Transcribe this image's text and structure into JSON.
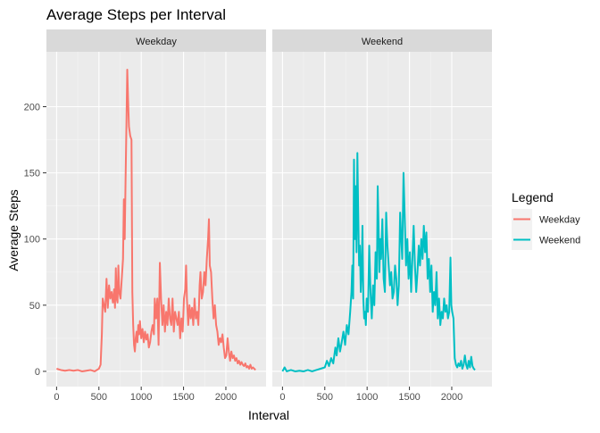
{
  "chart_data": {
    "type": "line",
    "title": "Average Steps per Interval",
    "xlabel": "Interval",
    "ylabel": "Average Steps",
    "xlim": [
      -120,
      2475
    ],
    "ylim": [
      -11.5,
      241.5
    ],
    "x_ticks": [
      0,
      500,
      1000,
      1500,
      2000
    ],
    "y_ticks": [
      0,
      50,
      100,
      150,
      200
    ],
    "grid": true,
    "legend": {
      "title": "Legend",
      "position": "right"
    },
    "facets": [
      "Weekday",
      "Weekend"
    ],
    "series": [
      {
        "name": "Weekday",
        "facet": "Weekday",
        "color": "#F8766D",
        "points": [
          [
            0,
            2
          ],
          [
            50,
            1
          ],
          [
            100,
            0.5
          ],
          [
            150,
            1
          ],
          [
            200,
            0.5
          ],
          [
            250,
            1
          ],
          [
            300,
            0
          ],
          [
            350,
            0.5
          ],
          [
            400,
            1
          ],
          [
            450,
            0
          ],
          [
            500,
            2
          ],
          [
            520,
            5
          ],
          [
            535,
            28
          ],
          [
            545,
            55
          ],
          [
            560,
            50
          ],
          [
            575,
            45
          ],
          [
            590,
            70
          ],
          [
            605,
            48
          ],
          [
            620,
            65
          ],
          [
            635,
            55
          ],
          [
            650,
            60
          ],
          [
            665,
            52
          ],
          [
            680,
            62
          ],
          [
            690,
            48
          ],
          [
            700,
            78
          ],
          [
            710,
            55
          ],
          [
            720,
            52
          ],
          [
            730,
            80
          ],
          [
            740,
            60
          ],
          [
            755,
            55
          ],
          [
            770,
            70
          ],
          [
            785,
            85
          ],
          [
            795,
            130
          ],
          [
            805,
            100
          ],
          [
            815,
            145
          ],
          [
            825,
            185
          ],
          [
            835,
            228
          ],
          [
            845,
            205
          ],
          [
            855,
            185
          ],
          [
            870,
            178
          ],
          [
            885,
            175
          ],
          [
            895,
            60
          ],
          [
            905,
            35
          ],
          [
            915,
            20
          ],
          [
            925,
            15
          ],
          [
            935,
            25
          ],
          [
            945,
            30
          ],
          [
            955,
            22
          ],
          [
            965,
            35
          ],
          [
            975,
            28
          ],
          [
            985,
            38
          ],
          [
            1000,
            25
          ],
          [
            1015,
            32
          ],
          [
            1030,
            22
          ],
          [
            1045,
            30
          ],
          [
            1060,
            24
          ],
          [
            1075,
            28
          ],
          [
            1090,
            18
          ],
          [
            1105,
            22
          ],
          [
            1120,
            30
          ],
          [
            1135,
            35
          ],
          [
            1150,
            28
          ],
          [
            1160,
            55
          ],
          [
            1175,
            40
          ],
          [
            1190,
            55
          ],
          [
            1205,
            20
          ],
          [
            1220,
            82
          ],
          [
            1235,
            55
          ],
          [
            1250,
            35
          ],
          [
            1265,
            50
          ],
          [
            1280,
            30
          ],
          [
            1295,
            45
          ],
          [
            1310,
            35
          ],
          [
            1325,
            55
          ],
          [
            1340,
            40
          ],
          [
            1355,
            35
          ],
          [
            1370,
            55
          ],
          [
            1385,
            30
          ],
          [
            1400,
            45
          ],
          [
            1415,
            40
          ],
          [
            1430,
            35
          ],
          [
            1445,
            45
          ],
          [
            1460,
            25
          ],
          [
            1475,
            40
          ],
          [
            1490,
            30
          ],
          [
            1505,
            55
          ],
          [
            1520,
            62
          ],
          [
            1530,
            80
          ],
          [
            1540,
            55
          ],
          [
            1555,
            35
          ],
          [
            1570,
            50
          ],
          [
            1585,
            40
          ],
          [
            1600,
            48
          ],
          [
            1615,
            35
          ],
          [
            1630,
            55
          ],
          [
            1645,
            40
          ],
          [
            1660,
            45
          ],
          [
            1675,
            35
          ],
          [
            1690,
            65
          ],
          [
            1700,
            75
          ],
          [
            1715,
            55
          ],
          [
            1730,
            60
          ],
          [
            1745,
            75
          ],
          [
            1760,
            65
          ],
          [
            1775,
            85
          ],
          [
            1790,
            100
          ],
          [
            1800,
            115
          ],
          [
            1810,
            80
          ],
          [
            1825,
            75
          ],
          [
            1840,
            55
          ],
          [
            1855,
            40
          ],
          [
            1870,
            50
          ],
          [
            1885,
            35
          ],
          [
            1900,
            30
          ],
          [
            1915,
            20
          ],
          [
            1930,
            25
          ],
          [
            1945,
            22
          ],
          [
            1960,
            28
          ],
          [
            1975,
            18
          ],
          [
            1990,
            10
          ],
          [
            2005,
            12
          ],
          [
            2020,
            25
          ],
          [
            2035,
            15
          ],
          [
            2050,
            8
          ],
          [
            2065,
            15
          ],
          [
            2080,
            10
          ],
          [
            2095,
            12
          ],
          [
            2110,
            8
          ],
          [
            2125,
            10
          ],
          [
            2140,
            6
          ],
          [
            2155,
            8
          ],
          [
            2170,
            5
          ],
          [
            2185,
            7
          ],
          [
            2200,
            5
          ],
          [
            2215,
            4
          ],
          [
            2230,
            6
          ],
          [
            2245,
            3
          ],
          [
            2260,
            4
          ],
          [
            2275,
            2
          ],
          [
            2290,
            5
          ],
          [
            2305,
            2
          ],
          [
            2320,
            3
          ],
          [
            2335,
            2
          ],
          [
            2350,
            1
          ]
        ]
      },
      {
        "name": "Weekend",
        "facet": "Weekend",
        "color": "#00BFC4",
        "points": [
          [
            0,
            0
          ],
          [
            25,
            3
          ],
          [
            50,
            0
          ],
          [
            100,
            1
          ],
          [
            150,
            0
          ],
          [
            200,
            0.5
          ],
          [
            250,
            0
          ],
          [
            300,
            1
          ],
          [
            350,
            0
          ],
          [
            400,
            1
          ],
          [
            450,
            2
          ],
          [
            500,
            3
          ],
          [
            525,
            8
          ],
          [
            550,
            4
          ],
          [
            575,
            10
          ],
          [
            600,
            6
          ],
          [
            625,
            18
          ],
          [
            640,
            12
          ],
          [
            660,
            25
          ],
          [
            680,
            15
          ],
          [
            700,
            22
          ],
          [
            720,
            30
          ],
          [
            740,
            20
          ],
          [
            760,
            35
          ],
          [
            780,
            28
          ],
          [
            800,
            45
          ],
          [
            815,
            60
          ],
          [
            825,
            80
          ],
          [
            835,
            55
          ],
          [
            845,
            160
          ],
          [
            855,
            100
          ],
          [
            865,
            140
          ],
          [
            875,
            90
          ],
          [
            885,
            165
          ],
          [
            895,
            120
          ],
          [
            905,
            80
          ],
          [
            915,
            95
          ],
          [
            925,
            60
          ],
          [
            935,
            75
          ],
          [
            945,
            110
          ],
          [
            955,
            55
          ],
          [
            965,
            40
          ],
          [
            975,
            45
          ],
          [
            985,
            35
          ],
          [
            995,
            55
          ],
          [
            1010,
            45
          ],
          [
            1025,
            95
          ],
          [
            1040,
            60
          ],
          [
            1055,
            40
          ],
          [
            1070,
            65
          ],
          [
            1085,
            50
          ],
          [
            1100,
            90
          ],
          [
            1115,
            70
          ],
          [
            1125,
            140
          ],
          [
            1135,
            110
          ],
          [
            1145,
            75
          ],
          [
            1155,
            100
          ],
          [
            1165,
            85
          ],
          [
            1180,
            115
          ],
          [
            1195,
            70
          ],
          [
            1210,
            60
          ],
          [
            1225,
            120
          ],
          [
            1240,
            95
          ],
          [
            1255,
            80
          ],
          [
            1270,
            65
          ],
          [
            1285,
            75
          ],
          [
            1300,
            55
          ],
          [
            1315,
            60
          ],
          [
            1330,
            80
          ],
          [
            1345,
            70
          ],
          [
            1360,
            50
          ],
          [
            1375,
            65
          ],
          [
            1390,
            120
          ],
          [
            1400,
            105
          ],
          [
            1415,
            85
          ],
          [
            1430,
            150
          ],
          [
            1445,
            115
          ],
          [
            1460,
            80
          ],
          [
            1475,
            100
          ],
          [
            1490,
            70
          ],
          [
            1505,
            90
          ],
          [
            1520,
            60
          ],
          [
            1535,
            85
          ],
          [
            1550,
            110
          ],
          [
            1565,
            80
          ],
          [
            1580,
            60
          ],
          [
            1595,
            75
          ],
          [
            1610,
            95
          ],
          [
            1625,
            80
          ],
          [
            1640,
            100
          ],
          [
            1655,
            85
          ],
          [
            1670,
            110
          ],
          [
            1685,
            90
          ],
          [
            1700,
            105
          ],
          [
            1715,
            70
          ],
          [
            1730,
            85
          ],
          [
            1745,
            60
          ],
          [
            1760,
            80
          ],
          [
            1775,
            45
          ],
          [
            1790,
            60
          ],
          [
            1805,
            50
          ],
          [
            1820,
            75
          ],
          [
            1835,
            40
          ],
          [
            1850,
            55
          ],
          [
            1865,
            35
          ],
          [
            1880,
            45
          ],
          [
            1895,
            40
          ],
          [
            1910,
            55
          ],
          [
            1925,
            45
          ],
          [
            1940,
            50
          ],
          [
            1955,
            40
          ],
          [
            1970,
            45
          ],
          [
            1985,
            86
          ],
          [
            1995,
            50
          ],
          [
            2005,
            45
          ],
          [
            2020,
            40
          ],
          [
            2035,
            10
          ],
          [
            2050,
            5
          ],
          [
            2065,
            3
          ],
          [
            2080,
            6
          ],
          [
            2095,
            4
          ],
          [
            2110,
            8
          ],
          [
            2125,
            2
          ],
          [
            2140,
            5
          ],
          [
            2155,
            12
          ],
          [
            2170,
            5
          ],
          [
            2185,
            2
          ],
          [
            2200,
            8
          ],
          [
            2215,
            3
          ],
          [
            2230,
            11
          ],
          [
            2245,
            4
          ],
          [
            2260,
            2
          ],
          [
            2275,
            1
          ]
        ]
      }
    ]
  }
}
